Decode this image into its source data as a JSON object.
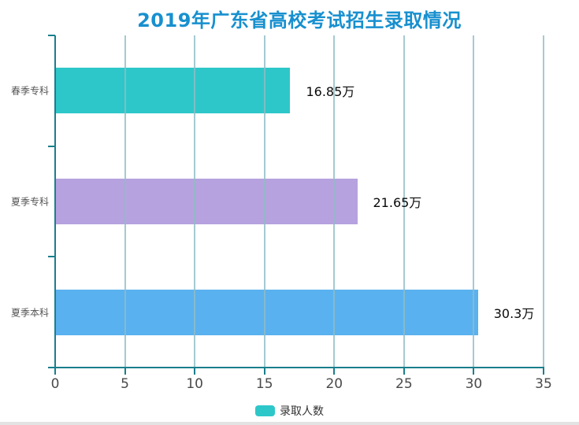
{
  "page": {
    "background": "#ffffff",
    "bottom_strip_color": "#e3e3e3"
  },
  "chart_data": {
    "type": "bar",
    "orientation": "horizontal",
    "title": "2019年广东省高校考试招生录取情况",
    "title_color": "#1790cf",
    "categories": [
      "春季专科",
      "夏季专科",
      "夏季本科"
    ],
    "values": [
      16.85,
      21.65,
      30.3
    ],
    "value_labels": [
      "16.85万",
      "21.65万",
      "30.3万"
    ],
    "value_unit": "万",
    "bar_colors": [
      "#2ec7c9",
      "#b6a2de",
      "#5ab1ef"
    ],
    "x_ticks": [
      0,
      5,
      10,
      15,
      20,
      25,
      30,
      35
    ],
    "xlim": [
      0,
      35
    ],
    "xlabel": "",
    "ylabel": "",
    "grid": true,
    "grid_color": "#8fbdc6",
    "axis_color": "#1a7f8c",
    "tick_label_color": "#4a4a4a",
    "category_label_color": "#555555",
    "value_label_color": "#0a0a0a",
    "legend": {
      "label": "录取人数",
      "color": "#2ec7c9",
      "position": "bottom"
    }
  }
}
